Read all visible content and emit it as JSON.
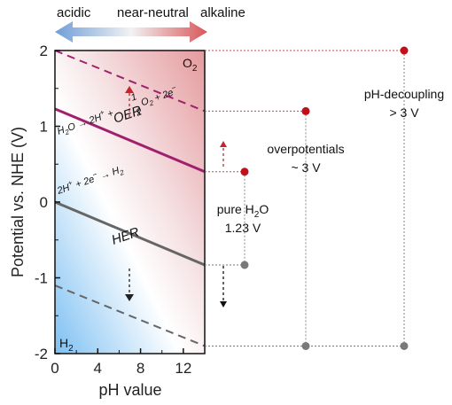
{
  "top_labels": {
    "acidic": "acidic",
    "near_neutral": "near-neutral",
    "alkaline": "alkaline",
    "acidic_color": "#3b78c2",
    "neutral_color": "#111111",
    "alkaline_color": "#c8393b"
  },
  "axes": {
    "ylabel": "Potential vs. NHE (V)",
    "xlabel": "pH value",
    "yticks": [
      "2",
      "1",
      "0",
      "-1",
      "-2"
    ],
    "xticks": [
      "0",
      "4",
      "8",
      "12"
    ],
    "xlim": [
      0,
      14
    ],
    "ylim": [
      -2,
      2
    ]
  },
  "regions": {
    "o2_label": "O",
    "o2_sub": "2",
    "h2_label": "H",
    "h2_sub": "2"
  },
  "lines": {
    "oer_label": "OER",
    "oer_eq_a": "H",
    "oer_eq_b": "2",
    "oer_eq_c": "O → 2H",
    "oer_eq_d": "+",
    "oer_eq_e": " + ",
    "oer_frac_num": "1",
    "oer_frac_den": "2",
    "oer_eq_f": "O",
    "oer_eq_g": "2",
    "oer_eq_h": " + 2e",
    "oer_eq_i": "−",
    "her_label": "HER",
    "her_eq_a": "2H",
    "her_eq_b": "+",
    "her_eq_c": " + 2e",
    "her_eq_d": "−",
    "her_eq_e": " → H",
    "her_eq_f": "2",
    "oer_color": "#a0206e",
    "her_color": "#666666"
  },
  "annotations": {
    "pure_water_a": "pure H",
    "pure_water_b": "2",
    "pure_water_c": "O",
    "pure_water_value": "1.23 V",
    "overpotentials": "overpotentials",
    "overpotentials_value": "~ 3 V",
    "decoupling": "pH-decoupling",
    "decoupling_value": "> 3 V"
  },
  "chart_data": {
    "type": "line",
    "xlabel": "pH value",
    "ylabel": "Potential vs. NHE (V)",
    "xlim": [
      0,
      14
    ],
    "ylim": [
      -2,
      2
    ],
    "series": [
      {
        "name": "OER",
        "x": [
          0,
          14
        ],
        "y": [
          1.23,
          0.4
        ],
        "style": "solid"
      },
      {
        "name": "HER",
        "x": [
          0,
          14
        ],
        "y": [
          0.0,
          -0.83
        ],
        "style": "solid"
      },
      {
        "x": [
          0,
          14
        ],
        "y": [
          2.0,
          1.2
        ],
        "style": "dashed"
      },
      {
        "x": [
          0,
          14
        ],
        "y": [
          -1.1,
          -1.9
        ],
        "style": "dashed"
      }
    ],
    "points": {
      "pure_water": {
        "top": 0.4,
        "bottom": -0.83
      },
      "overpotentials": {
        "top": 1.2,
        "bottom": -1.9
      },
      "decoupling": {
        "top": 2.0,
        "bottom": -1.9
      }
    }
  }
}
